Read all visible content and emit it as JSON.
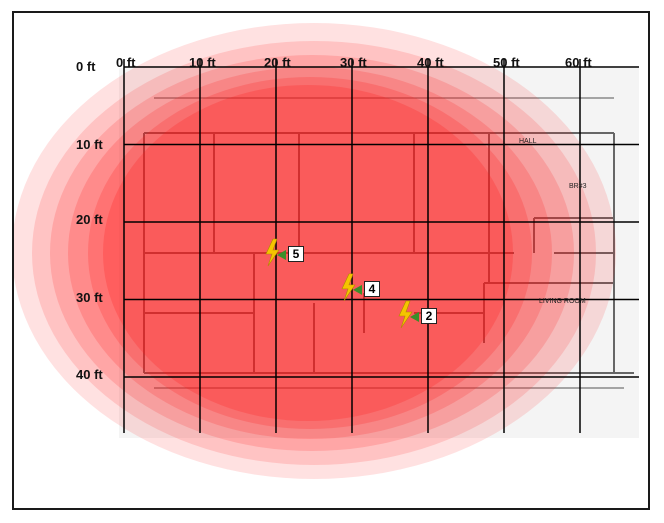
{
  "axes": {
    "x_ticks": [
      "0 ft",
      "10 ft",
      "20 ft",
      "30 ft",
      "40 ft",
      "50 ft",
      "60 ft"
    ],
    "y_ticks": [
      "0 ft",
      "10 ft",
      "20 ft",
      "30 ft",
      "40 ft"
    ]
  },
  "floorplan": {
    "room_labels": [
      "LIVING ROOM",
      "BR#3",
      "HALL"
    ]
  },
  "access_points": [
    {
      "label": "5",
      "x_ft": 20,
      "y_ft": 24
    },
    {
      "label": "4",
      "x_ft": 30,
      "y_ft": 28.5
    },
    {
      "label": "2",
      "x_ft": 37.5,
      "y_ft": 32
    }
  ],
  "colors": {
    "coverage": "#ff1a1a",
    "lightning": "#f5c400",
    "ap_arrow": "#3a8f2a",
    "grid": "#000000"
  }
}
